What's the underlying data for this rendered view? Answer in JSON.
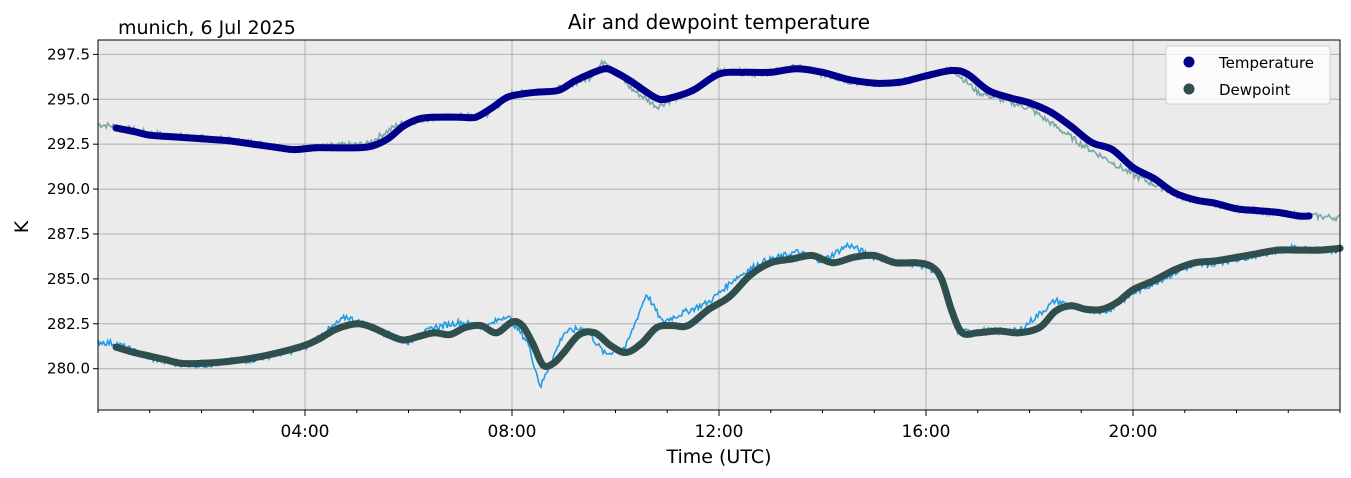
{
  "chart_data": {
    "type": "line",
    "title": "Air and dewpoint temperature",
    "subtitle": "munich, 6 Jul 2025",
    "xlabel": "Time (UTC)",
    "ylabel": "K",
    "xlim": [
      0,
      24
    ],
    "ylim": [
      277.7,
      298.3
    ],
    "x_ticks": [
      {
        "value": 4,
        "label": "04:00"
      },
      {
        "value": 8,
        "label": "08:00"
      },
      {
        "value": 12,
        "label": "12:00"
      },
      {
        "value": 16,
        "label": "16:00"
      },
      {
        "value": 20,
        "label": "20:00"
      }
    ],
    "y_ticks": [
      {
        "value": 280.0,
        "label": "280.0"
      },
      {
        "value": 282.5,
        "label": "282.5"
      },
      {
        "value": 285.0,
        "label": "285.0"
      },
      {
        "value": 287.5,
        "label": "287.5"
      },
      {
        "value": 290.0,
        "label": "290.0"
      },
      {
        "value": 292.5,
        "label": "292.5"
      },
      {
        "value": 295.0,
        "label": "295.0"
      },
      {
        "value": 297.5,
        "label": "297.5"
      }
    ],
    "grid": true,
    "legend_position": "top-right",
    "plot_background": "#ebebeb",
    "raw_series": [
      {
        "color": "#7aa6a6",
        "x": [
          0.0,
          0.35,
          1.0,
          3.0,
          3.8,
          4.5,
          5.2,
          5.8,
          6.5,
          7.5,
          8.0,
          8.8,
          9.5,
          9.8,
          10.3,
          10.8,
          11.5,
          12.0,
          12.8,
          13.5,
          14.5,
          15.3,
          16.0,
          16.5,
          17.0,
          18.0,
          19.0,
          20.0,
          21.0,
          22.0,
          23.0,
          24.0
        ],
        "y": [
          293.6,
          293.5,
          293.1,
          292.6,
          292.2,
          292.4,
          292.5,
          293.6,
          294.0,
          294.1,
          295.3,
          295.5,
          296.2,
          297.2,
          295.6,
          294.6,
          295.5,
          296.6,
          296.4,
          296.8,
          296.0,
          295.8,
          296.3,
          296.7,
          295.4,
          294.5,
          292.5,
          290.8,
          289.5,
          288.9,
          288.6,
          288.4
        ]
      },
      {
        "color": "#1f9ce6",
        "x": [
          0.0,
          0.35,
          1.0,
          1.5,
          2.0,
          3.0,
          4.0,
          4.8,
          5.5,
          6.0,
          6.5,
          7.0,
          7.5,
          7.9,
          8.3,
          8.55,
          8.7,
          9.0,
          9.4,
          9.8,
          10.2,
          10.6,
          10.9,
          11.3,
          11.8,
          12.3,
          12.8,
          13.5,
          14.0,
          14.5,
          15.0,
          16.0,
          16.3,
          16.6,
          17.0,
          17.8,
          18.5,
          19.0,
          19.5,
          20.0,
          21.0,
          22.0,
          23.0,
          24.0
        ],
        "y": [
          281.5,
          281.4,
          280.6,
          280.3,
          280.2,
          280.5,
          281.2,
          282.9,
          282.0,
          281.5,
          282.3,
          282.6,
          282.3,
          283.0,
          281.5,
          279.0,
          280.0,
          282.0,
          282.3,
          280.8,
          281.2,
          284.2,
          282.6,
          283.1,
          283.7,
          285.0,
          285.9,
          286.5,
          286.0,
          286.9,
          286.2,
          285.7,
          285.2,
          282.0,
          282.1,
          282.1,
          283.8,
          283.3,
          283.2,
          284.2,
          285.6,
          286.1,
          286.7,
          286.6
        ]
      }
    ],
    "series": [
      {
        "name": "Temperature",
        "color": "#00008b",
        "x": [
          0.35,
          0.7,
          1.0,
          1.5,
          2.0,
          2.5,
          3.0,
          3.5,
          3.8,
          4.2,
          4.5,
          5.0,
          5.3,
          5.6,
          5.9,
          6.2,
          6.5,
          7.0,
          7.3,
          7.6,
          7.9,
          8.2,
          8.5,
          8.9,
          9.2,
          9.5,
          9.8,
          10.0,
          10.3,
          10.6,
          10.85,
          11.1,
          11.5,
          12.0,
          12.5,
          13.0,
          13.5,
          14.0,
          14.5,
          15.0,
          15.3,
          15.6,
          16.0,
          16.5,
          16.8,
          17.2,
          17.6,
          18.0,
          18.4,
          18.8,
          19.2,
          19.6,
          20.0,
          20.4,
          20.8,
          21.2,
          21.6,
          22.0,
          22.4,
          22.8,
          23.2,
          23.4
        ],
        "y": [
          293.4,
          293.2,
          293.0,
          292.9,
          292.8,
          292.7,
          292.5,
          292.3,
          292.2,
          292.3,
          292.3,
          292.3,
          292.4,
          292.8,
          293.5,
          293.9,
          294.0,
          294.0,
          294.0,
          294.5,
          295.1,
          295.3,
          295.4,
          295.5,
          296.0,
          296.4,
          296.7,
          296.5,
          296.0,
          295.4,
          295.0,
          295.1,
          295.5,
          296.4,
          296.5,
          296.5,
          296.7,
          296.5,
          296.1,
          295.9,
          295.9,
          296.0,
          296.3,
          296.6,
          296.4,
          295.5,
          295.1,
          294.8,
          294.3,
          293.5,
          292.6,
          292.2,
          291.2,
          290.6,
          289.8,
          289.4,
          289.2,
          288.9,
          288.8,
          288.7,
          288.5,
          288.5
        ]
      },
      {
        "name": "Dewpoint",
        "color": "#2f4f4f",
        "x": [
          0.35,
          0.7,
          1.0,
          1.3,
          1.6,
          2.0,
          2.5,
          3.0,
          3.5,
          4.0,
          4.3,
          4.6,
          5.0,
          5.3,
          5.6,
          5.9,
          6.2,
          6.5,
          6.8,
          7.1,
          7.4,
          7.7,
          8.0,
          8.2,
          8.4,
          8.6,
          8.8,
          9.0,
          9.3,
          9.6,
          9.9,
          10.2,
          10.5,
          10.8,
          11.1,
          11.4,
          11.8,
          12.2,
          12.6,
          13.0,
          13.4,
          13.8,
          14.2,
          14.6,
          15.0,
          15.4,
          15.8,
          16.1,
          16.3,
          16.5,
          16.7,
          17.0,
          17.4,
          17.8,
          18.2,
          18.5,
          18.8,
          19.1,
          19.4,
          19.7,
          20.0,
          20.4,
          20.8,
          21.2,
          21.6,
          22.0,
          22.4,
          22.8,
          23.2,
          23.6,
          24.0
        ],
        "y": [
          281.2,
          280.9,
          280.7,
          280.5,
          280.3,
          280.3,
          280.4,
          280.6,
          280.9,
          281.3,
          281.7,
          282.2,
          282.5,
          282.3,
          281.9,
          281.6,
          281.8,
          282.0,
          281.9,
          282.3,
          282.4,
          282.0,
          282.6,
          282.4,
          281.4,
          280.2,
          280.3,
          280.9,
          281.9,
          282.0,
          281.3,
          280.9,
          281.4,
          282.3,
          282.4,
          282.4,
          283.3,
          284.0,
          285.2,
          285.9,
          286.1,
          286.3,
          285.9,
          286.2,
          286.3,
          285.9,
          285.9,
          285.7,
          285.0,
          283.2,
          282.0,
          282.0,
          282.1,
          282.0,
          282.3,
          283.2,
          283.5,
          283.3,
          283.3,
          283.7,
          284.4,
          284.9,
          285.5,
          285.9,
          286.0,
          286.2,
          286.4,
          286.6,
          286.6,
          286.6,
          286.7
        ]
      }
    ]
  }
}
